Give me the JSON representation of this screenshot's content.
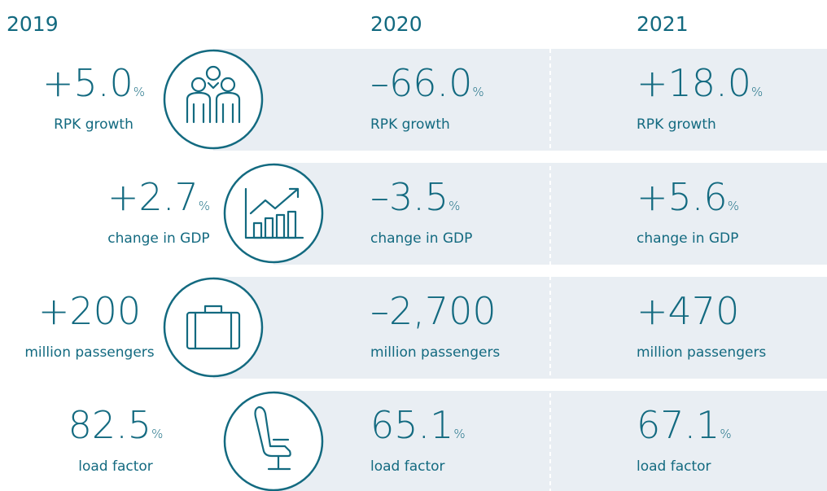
{
  "years": [
    "2019",
    "2020",
    "2021"
  ],
  "rows": [
    {
      "label": "RPK growth",
      "values": [
        {
          "number": "+5.0",
          "unit": "%"
        },
        {
          "number": "–66.0",
          "unit": "%"
        },
        {
          "number": "+18.0",
          "unit": "%"
        }
      ]
    },
    {
      "label": "change in GDP",
      "values": [
        {
          "number": "+2.7",
          "unit": "%"
        },
        {
          "number": "–3.5",
          "unit": "%"
        },
        {
          "number": "+5.6",
          "unit": "%"
        }
      ]
    },
    {
      "label": "million passengers",
      "values": [
        {
          "number": "+200"
        },
        {
          "number": "–2,700"
        },
        {
          "number": "+470"
        }
      ]
    },
    {
      "label": "load factor",
      "values": [
        {
          "number": "82.5",
          "unit": "%"
        },
        {
          "number": "65.1",
          "unit": "%"
        },
        {
          "number": "67.1",
          "unit": "%"
        }
      ]
    }
  ]
}
